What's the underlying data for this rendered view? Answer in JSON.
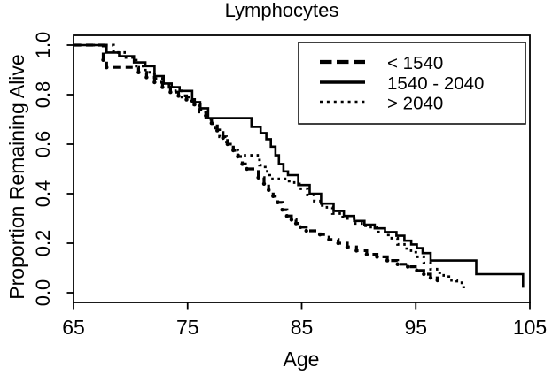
{
  "window": {
    "background": "#ffffff",
    "foreground": "#000000"
  },
  "chart_data": {
    "type": "line",
    "subtype": "kaplan-meier-step-survival",
    "title": "Lymphocytes",
    "xlabel": "Age",
    "ylabel": "Proportion Remaining Alive",
    "xlim": [
      65,
      105
    ],
    "ylim": [
      0.0,
      1.0
    ],
    "x_ticks": [
      65,
      75,
      85,
      95,
      105
    ],
    "y_ticks": [
      0.0,
      0.2,
      0.4,
      0.6,
      0.8,
      1.0
    ],
    "y_tick_labels": [
      "0.0",
      "0.2",
      "0.4",
      "0.6",
      "0.8",
      "1.0"
    ],
    "grid": false,
    "legend": {
      "position": "top-right",
      "border": true
    },
    "series": [
      {
        "name": "< 1540",
        "line_style": "dashed",
        "markers": true,
        "color": "#000000",
        "points": [
          [
            65,
            1.0
          ],
          [
            67.6,
            0.94
          ],
          [
            67.9,
            0.91
          ],
          [
            70.7,
            0.89
          ],
          [
            71.4,
            0.87
          ],
          [
            72.1,
            0.85
          ],
          [
            72.8,
            0.83
          ],
          [
            73.5,
            0.81
          ],
          [
            74.2,
            0.795
          ],
          [
            74.9,
            0.78
          ],
          [
            75.6,
            0.76
          ],
          [
            76.1,
            0.74
          ],
          [
            76.6,
            0.715
          ],
          [
            77.1,
            0.685
          ],
          [
            77.6,
            0.655
          ],
          [
            78.1,
            0.625
          ],
          [
            78.5,
            0.6
          ],
          [
            79.0,
            0.575
          ],
          [
            79.4,
            0.55
          ],
          [
            79.8,
            0.52
          ],
          [
            80.2,
            0.5
          ],
          [
            81.2,
            0.465
          ],
          [
            81.7,
            0.44
          ],
          [
            82.1,
            0.415
          ],
          [
            82.5,
            0.39
          ],
          [
            82.9,
            0.365
          ],
          [
            83.3,
            0.335
          ],
          [
            83.7,
            0.31
          ],
          [
            84.1,
            0.295
          ],
          [
            84.5,
            0.28
          ],
          [
            84.9,
            0.265
          ],
          [
            85.4,
            0.25
          ],
          [
            86.6,
            0.235
          ],
          [
            87.4,
            0.215
          ],
          [
            88.2,
            0.2
          ],
          [
            89.0,
            0.185
          ],
          [
            89.8,
            0.17
          ],
          [
            90.7,
            0.155
          ],
          [
            91.6,
            0.145
          ],
          [
            92.5,
            0.13
          ],
          [
            93.4,
            0.115
          ],
          [
            94.3,
            0.105
          ],
          [
            95.1,
            0.09
          ],
          [
            95.7,
            0.075
          ],
          [
            96.3,
            0.06
          ],
          [
            96.9,
            0.05
          ]
        ]
      },
      {
        "name": "1540 - 2040",
        "line_style": "solid",
        "markers": false,
        "color": "#000000",
        "points": [
          [
            65,
            1.0
          ],
          [
            67.9,
            0.97
          ],
          [
            69.0,
            0.955
          ],
          [
            70.3,
            0.93
          ],
          [
            71.3,
            0.915
          ],
          [
            72.1,
            0.875
          ],
          [
            72.9,
            0.845
          ],
          [
            73.6,
            0.83
          ],
          [
            74.3,
            0.815
          ],
          [
            75.4,
            0.77
          ],
          [
            76.1,
            0.745
          ],
          [
            76.8,
            0.705
          ],
          [
            80.6,
            0.67
          ],
          [
            81.4,
            0.645
          ],
          [
            81.9,
            0.62
          ],
          [
            82.3,
            0.59
          ],
          [
            82.7,
            0.555
          ],
          [
            83.0,
            0.52
          ],
          [
            83.4,
            0.49
          ],
          [
            83.8,
            0.475
          ],
          [
            84.7,
            0.435
          ],
          [
            85.7,
            0.4
          ],
          [
            86.7,
            0.36
          ],
          [
            87.8,
            0.33
          ],
          [
            88.7,
            0.31
          ],
          [
            89.6,
            0.29
          ],
          [
            90.5,
            0.275
          ],
          [
            91.4,
            0.26
          ],
          [
            92.3,
            0.245
          ],
          [
            93.3,
            0.23
          ],
          [
            94.0,
            0.21
          ],
          [
            94.6,
            0.195
          ],
          [
            95.1,
            0.18
          ],
          [
            95.6,
            0.16
          ],
          [
            96.3,
            0.13
          ],
          [
            100.3,
            0.075
          ],
          [
            104.4,
            0.02
          ]
        ]
      },
      {
        "name": "> 2040",
        "line_style": "dotted",
        "markers": false,
        "color": "#000000",
        "points": [
          [
            65,
            1.0
          ],
          [
            68.5,
            0.97
          ],
          [
            69.6,
            0.95
          ],
          [
            70.5,
            0.915
          ],
          [
            71.3,
            0.89
          ],
          [
            72.1,
            0.865
          ],
          [
            72.9,
            0.84
          ],
          [
            73.7,
            0.815
          ],
          [
            74.5,
            0.79
          ],
          [
            75.3,
            0.76
          ],
          [
            76.0,
            0.73
          ],
          [
            76.6,
            0.7
          ],
          [
            77.2,
            0.665
          ],
          [
            77.8,
            0.63
          ],
          [
            78.4,
            0.6
          ],
          [
            79.0,
            0.575
          ],
          [
            79.4,
            0.555
          ],
          [
            81.3,
            0.515
          ],
          [
            81.8,
            0.49
          ],
          [
            82.2,
            0.46
          ],
          [
            83.9,
            0.445
          ],
          [
            84.8,
            0.42
          ],
          [
            85.5,
            0.395
          ],
          [
            86.1,
            0.37
          ],
          [
            86.8,
            0.345
          ],
          [
            87.7,
            0.32
          ],
          [
            88.6,
            0.3
          ],
          [
            89.6,
            0.28
          ],
          [
            90.6,
            0.265
          ],
          [
            91.6,
            0.245
          ],
          [
            92.6,
            0.22
          ],
          [
            93.4,
            0.195
          ],
          [
            94.2,
            0.17
          ],
          [
            95.0,
            0.145
          ],
          [
            95.7,
            0.12
          ],
          [
            96.3,
            0.095
          ],
          [
            97.1,
            0.07
          ],
          [
            97.9,
            0.05
          ],
          [
            98.6,
            0.04
          ],
          [
            99.2,
            0.018
          ]
        ]
      }
    ]
  }
}
